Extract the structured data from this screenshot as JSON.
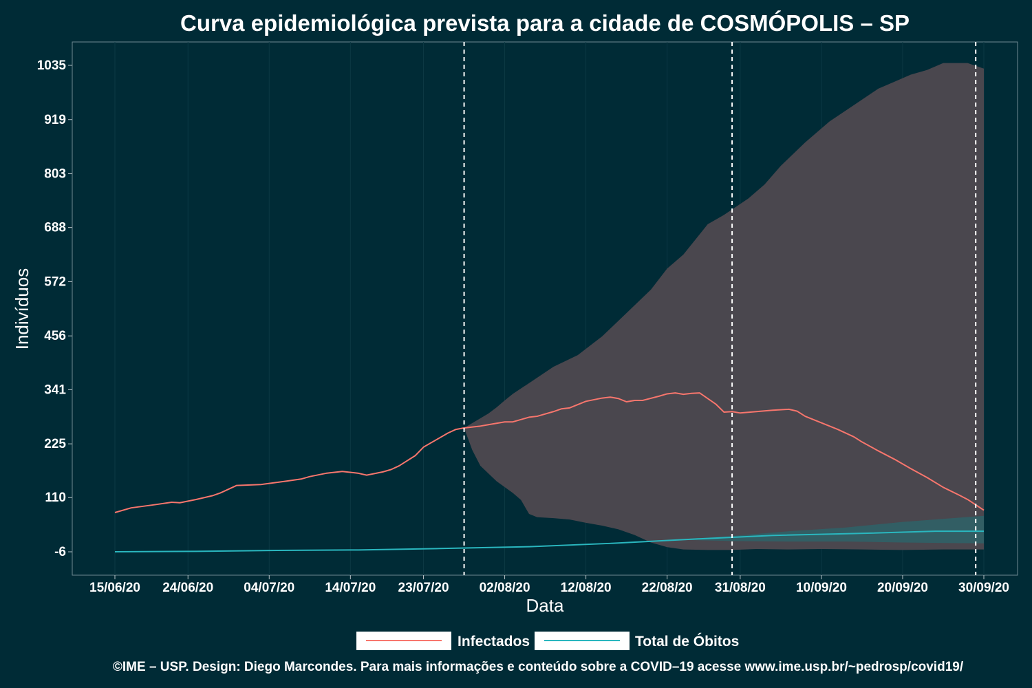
{
  "chart_data": {
    "type": "line",
    "title": "Curva epidemiológica prevista para a cidade de COSMÓPOLIS – SP",
    "xlabel": "Data",
    "ylabel": "Indivíduos",
    "x_start": "2020-06-15",
    "x_end": "2020-09-30",
    "x_ticks": [
      "15/06/20",
      "24/06/20",
      "04/07/20",
      "14/07/20",
      "23/07/20",
      "02/08/20",
      "12/08/20",
      "22/08/20",
      "31/08/20",
      "10/09/20",
      "20/09/20",
      "30/09/20"
    ],
    "y_ticks": [
      "-6",
      "110",
      "225",
      "341",
      "456",
      "572",
      "688",
      "803",
      "919",
      "1035"
    ],
    "ylim": [
      -56,
      1085
    ],
    "grid": false,
    "legend_position": "bottom",
    "vlines": [
      "2020-07-28",
      "2020-08-30",
      "2020-09-29"
    ],
    "series": [
      {
        "name": "Infectados",
        "color": "#f8766d",
        "points": [
          [
            "2020-06-15",
            78
          ],
          [
            "2020-06-17",
            88
          ],
          [
            "2020-06-20",
            95
          ],
          [
            "2020-06-22",
            100
          ],
          [
            "2020-06-23",
            99
          ],
          [
            "2020-06-25",
            106
          ],
          [
            "2020-06-27",
            114
          ],
          [
            "2020-06-28",
            120
          ],
          [
            "2020-06-30",
            136
          ],
          [
            "2020-07-03",
            138
          ],
          [
            "2020-07-06",
            145
          ],
          [
            "2020-07-08",
            150
          ],
          [
            "2020-07-09",
            155
          ],
          [
            "2020-07-11",
            162
          ],
          [
            "2020-07-13",
            166
          ],
          [
            "2020-07-15",
            162
          ],
          [
            "2020-07-16",
            158
          ],
          [
            "2020-07-18",
            165
          ],
          [
            "2020-07-19",
            170
          ],
          [
            "2020-07-20",
            178
          ],
          [
            "2020-07-22",
            200
          ],
          [
            "2020-07-23",
            218
          ],
          [
            "2020-07-25",
            238
          ],
          [
            "2020-07-26",
            248
          ],
          [
            "2020-07-27",
            256
          ],
          [
            "2020-07-28",
            259
          ],
          [
            "2020-07-30",
            263
          ],
          [
            "2020-07-31",
            266
          ],
          [
            "2020-08-02",
            272
          ],
          [
            "2020-08-03",
            272
          ],
          [
            "2020-08-05",
            282
          ],
          [
            "2020-08-06",
            284
          ],
          [
            "2020-08-08",
            294
          ],
          [
            "2020-08-09",
            300
          ],
          [
            "2020-08-10",
            302
          ],
          [
            "2020-08-12",
            316
          ],
          [
            "2020-08-14",
            323
          ],
          [
            "2020-08-15",
            325
          ],
          [
            "2020-08-16",
            322
          ],
          [
            "2020-08-17",
            315
          ],
          [
            "2020-08-18",
            318
          ],
          [
            "2020-08-19",
            318
          ],
          [
            "2020-08-21",
            327
          ],
          [
            "2020-08-22",
            332
          ],
          [
            "2020-08-23",
            334
          ],
          [
            "2020-08-24",
            331
          ],
          [
            "2020-08-25",
            333
          ],
          [
            "2020-08-26",
            334
          ],
          [
            "2020-08-28",
            310
          ],
          [
            "2020-08-29",
            293
          ],
          [
            "2020-08-30",
            294
          ],
          [
            "2020-08-31",
            291
          ],
          [
            "2020-09-02",
            294
          ],
          [
            "2020-09-04",
            297
          ],
          [
            "2020-09-06",
            299
          ],
          [
            "2020-09-07",
            295
          ],
          [
            "2020-09-08",
            284
          ],
          [
            "2020-09-10",
            270
          ],
          [
            "2020-09-12",
            256
          ],
          [
            "2020-09-14",
            240
          ],
          [
            "2020-09-15",
            229
          ],
          [
            "2020-09-17",
            210
          ],
          [
            "2020-09-19",
            192
          ],
          [
            "2020-09-21",
            172
          ],
          [
            "2020-09-23",
            153
          ],
          [
            "2020-09-25",
            132
          ],
          [
            "2020-09-27",
            115
          ],
          [
            "2020-09-28",
            106
          ],
          [
            "2020-09-30",
            83
          ]
        ]
      },
      {
        "name": "Total de Óbitos",
        "color": "#2ab7bf",
        "points": [
          [
            "2020-06-15",
            -6
          ],
          [
            "2020-06-25",
            -5
          ],
          [
            "2020-07-05",
            -3
          ],
          [
            "2020-07-15",
            -2
          ],
          [
            "2020-07-25",
            1
          ],
          [
            "2020-08-05",
            5
          ],
          [
            "2020-08-15",
            12
          ],
          [
            "2020-08-25",
            21
          ],
          [
            "2020-09-04",
            29
          ],
          [
            "2020-09-14",
            33
          ],
          [
            "2020-09-24",
            38
          ],
          [
            "2020-09-30",
            38
          ]
        ]
      }
    ],
    "bands": [
      {
        "name": "Infectados",
        "color": "#4a474e",
        "upper": [
          [
            "2020-07-28",
            259
          ],
          [
            "2020-07-31",
            290
          ],
          [
            "2020-08-01",
            303
          ],
          [
            "2020-08-02",
            318
          ],
          [
            "2020-08-03",
            332
          ],
          [
            "2020-08-05",
            355
          ],
          [
            "2020-08-08",
            390
          ],
          [
            "2020-08-11",
            415
          ],
          [
            "2020-08-14",
            455
          ],
          [
            "2020-08-17",
            505
          ],
          [
            "2020-08-20",
            555
          ],
          [
            "2020-08-22",
            600
          ],
          [
            "2020-08-24",
            630
          ],
          [
            "2020-08-27",
            695
          ],
          [
            "2020-08-29",
            715
          ],
          [
            "2020-09-01",
            750
          ],
          [
            "2020-09-03",
            780
          ],
          [
            "2020-09-05",
            820
          ],
          [
            "2020-09-08",
            870
          ],
          [
            "2020-09-11",
            915
          ],
          [
            "2020-09-14",
            950
          ],
          [
            "2020-09-17",
            985
          ],
          [
            "2020-09-19",
            1000
          ],
          [
            "2020-09-21",
            1015
          ],
          [
            "2020-09-23",
            1025
          ],
          [
            "2020-09-25",
            1040
          ],
          [
            "2020-09-28",
            1040
          ],
          [
            "2020-09-30",
            1028
          ]
        ],
        "lower": [
          [
            "2020-07-28",
            259
          ],
          [
            "2020-07-29",
            212
          ],
          [
            "2020-07-30",
            178
          ],
          [
            "2020-08-01",
            145
          ],
          [
            "2020-08-03",
            120
          ],
          [
            "2020-08-04",
            105
          ],
          [
            "2020-08-05",
            75
          ],
          [
            "2020-08-06",
            68
          ],
          [
            "2020-08-08",
            66
          ],
          [
            "2020-08-10",
            63
          ],
          [
            "2020-08-12",
            56
          ],
          [
            "2020-08-14",
            50
          ],
          [
            "2020-08-16",
            42
          ],
          [
            "2020-08-18",
            30
          ],
          [
            "2020-08-20",
            14
          ],
          [
            "2020-08-22",
            4
          ],
          [
            "2020-08-24",
            -1
          ],
          [
            "2020-08-27",
            -2
          ],
          [
            "2020-08-30",
            -2
          ],
          [
            "2020-09-02",
            0
          ],
          [
            "2020-09-06",
            -1
          ],
          [
            "2020-09-10",
            0
          ],
          [
            "2020-09-15",
            -1
          ],
          [
            "2020-09-20",
            -2
          ],
          [
            "2020-09-25",
            -1
          ],
          [
            "2020-09-30",
            -1
          ]
        ]
      },
      {
        "name": "Total de Óbitos",
        "color": "#2e6368",
        "upper": [
          [
            "2020-08-23",
            20
          ],
          [
            "2020-08-30",
            28
          ],
          [
            "2020-09-06",
            38
          ],
          [
            "2020-09-13",
            46
          ],
          [
            "2020-09-20",
            58
          ],
          [
            "2020-09-30",
            71
          ]
        ],
        "lower": [
          [
            "2020-08-23",
            20
          ],
          [
            "2020-08-30",
            17
          ],
          [
            "2020-09-06",
            16
          ],
          [
            "2020-09-13",
            16
          ],
          [
            "2020-09-20",
            14
          ],
          [
            "2020-09-30",
            12
          ]
        ]
      }
    ]
  },
  "legend": {
    "items": [
      {
        "label": "Infectados",
        "color": "#f8766d"
      },
      {
        "label": "Total de Óbitos",
        "color": "#2ab7bf"
      }
    ]
  },
  "footer": {
    "caption": "©IME – USP. Design: Diego Marcondes. Para mais informações e conteúdo sobre a COVID–19 acesse www.ime.usp.br/~pedrosp/covid19/"
  }
}
